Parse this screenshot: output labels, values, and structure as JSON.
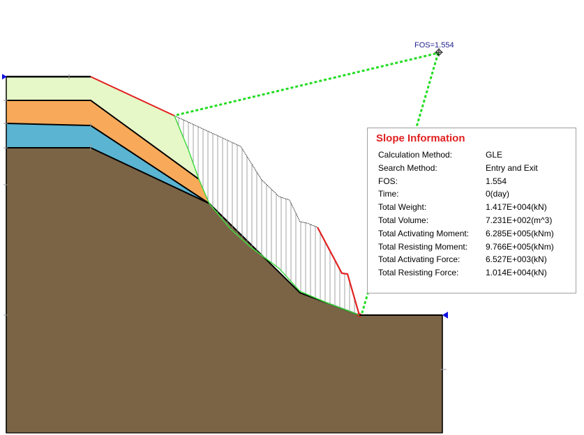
{
  "fos_label": "FOS=1.554",
  "slope_info": {
    "title": "Slope Information",
    "rows": [
      {
        "label": "Calculation Method:",
        "value": "GLE"
      },
      {
        "label": "Search Method:",
        "value": "Entry and Exit"
      },
      {
        "label": "FOS:",
        "value": "1.554"
      },
      {
        "label": "Time:",
        "value": "0(day)"
      },
      {
        "label": "Total Weight:",
        "value": "1.417E+004(kN)"
      },
      {
        "label": "Total Volume:",
        "value": "7.231E+002(m^3)"
      },
      {
        "label": "Total Activating Moment:",
        "value": "6.285E+005(kNm)"
      },
      {
        "label": "Total Resisting Moment:",
        "value": "9.766E+005(kNm)"
      },
      {
        "label": "Total Activating Force:",
        "value": "6.527E+003(kN)"
      },
      {
        "label": "Total Resisting Force:",
        "value": "1.014E+004(kN)"
      }
    ]
  },
  "colors": {
    "layer_top": "#e6f8c8",
    "layer_orange": "#f8aa5a",
    "layer_blue": "#5ab4d2",
    "bedrock": "#7b6446",
    "slip_surface": "#e02020",
    "search_line": "#22dd22",
    "fos_text": "#1c1c8c",
    "boundary_marker": "#1010e0"
  }
}
